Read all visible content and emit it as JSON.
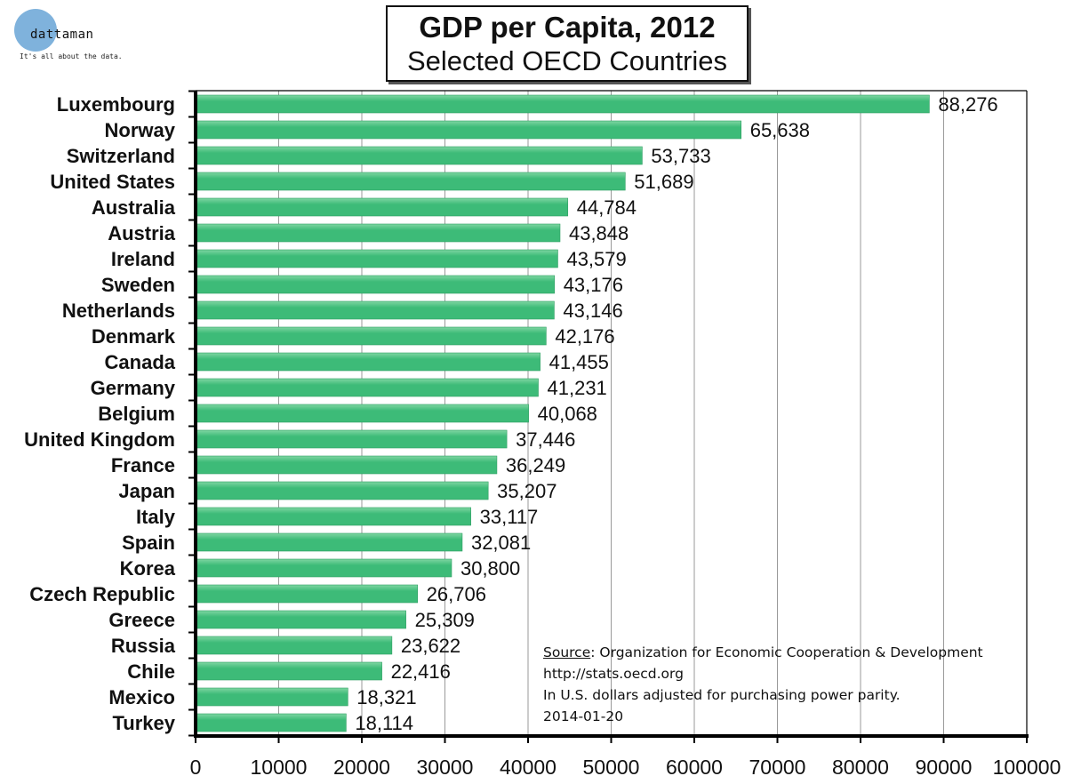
{
  "logo": {
    "name": "dattaman",
    "tagline": "It's all about the data."
  },
  "colors": {
    "bar": "#3dbb78",
    "bar_highlight": "#7fd6a2",
    "grid": "#9a9a9a",
    "axis": "#000000"
  },
  "note": {
    "source_label": "Source",
    "source_text": ": Organization for Economic Cooperation & Development",
    "url": "http://stats.oecd.org",
    "units": "In U.S. dollars adjusted for purchasing power parity.",
    "date": "2014-01-20"
  },
  "chart_data": {
    "type": "bar",
    "orientation": "horizontal",
    "title": "GDP per Capita, 2012",
    "subtitle": "Selected OECD Countries",
    "categories": [
      "Luxembourg",
      "Norway",
      "Switzerland",
      "United States",
      "Australia",
      "Austria",
      "Ireland",
      "Sweden",
      "Netherlands",
      "Denmark",
      "Canada",
      "Germany",
      "Belgium",
      "United Kingdom",
      "France",
      "Japan",
      "Italy",
      "Spain",
      "Korea",
      "Czech Republic",
      "Greece",
      "Russia",
      "Chile",
      "Mexico",
      "Turkey"
    ],
    "values": [
      88276,
      65638,
      53733,
      51689,
      44784,
      43848,
      43579,
      43176,
      43146,
      42176,
      41455,
      41231,
      40068,
      37446,
      36249,
      35207,
      33117,
      32081,
      30800,
      26706,
      25309,
      23622,
      22416,
      18321,
      18114
    ],
    "value_labels": [
      "88,276",
      "65,638",
      "53,733",
      "51,689",
      "44,784",
      "43,848",
      "43,579",
      "43,176",
      "43,146",
      "42,176",
      "41,455",
      "41,231",
      "40,068",
      "37,446",
      "36,249",
      "35,207",
      "33,117",
      "32,081",
      "30,800",
      "26,706",
      "25,309",
      "23,622",
      "22,416",
      "18,321",
      "18,114"
    ],
    "xlim": [
      0,
      100000
    ],
    "xticks": [
      0,
      10000,
      20000,
      30000,
      40000,
      50000,
      60000,
      70000,
      80000,
      90000,
      100000
    ],
    "xtick_labels": [
      "0",
      "10000",
      "20000",
      "30000",
      "40000",
      "50000",
      "60000",
      "70000",
      "80000",
      "90000",
      "100000"
    ],
    "grid": true
  }
}
